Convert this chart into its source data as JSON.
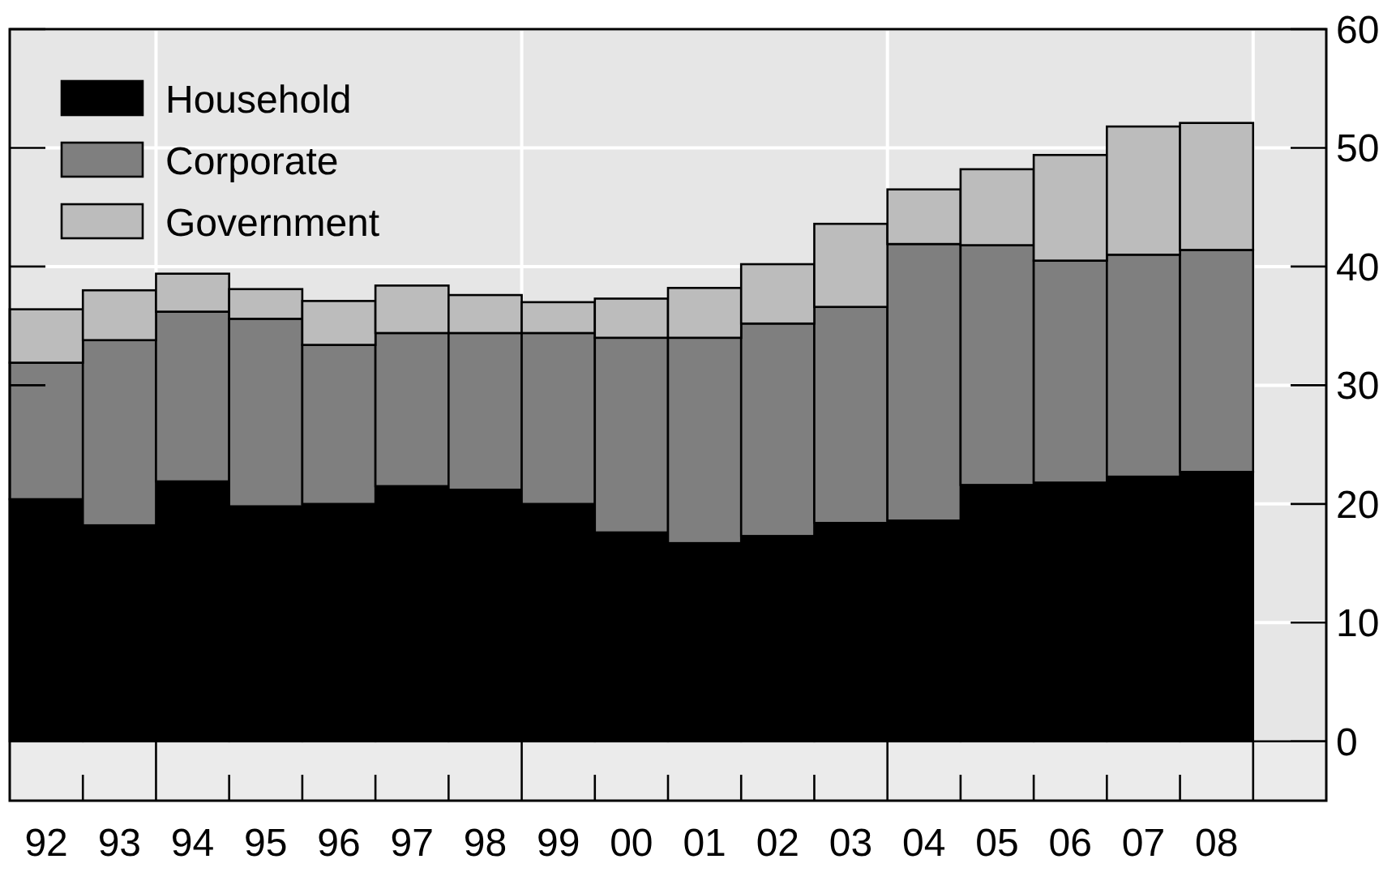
{
  "chart_data": {
    "type": "bar",
    "stacked": true,
    "categories": [
      "92",
      "93",
      "94",
      "95",
      "96",
      "97",
      "98",
      "99",
      "00",
      "01",
      "02",
      "03",
      "04",
      "05",
      "06",
      "07",
      "08",
      null
    ],
    "series": [
      {
        "name": "Household",
        "color": "#000000",
        "values": [
          20.4,
          18.2,
          21.9,
          19.8,
          20.0,
          21.5,
          21.2,
          20.0,
          17.6,
          16.7,
          17.3,
          18.4,
          18.6,
          21.6,
          21.8,
          22.3,
          22.7,
          null
        ]
      },
      {
        "name": "Corporate",
        "color": "#7f7f7f",
        "values": [
          11.5,
          15.6,
          14.3,
          15.8,
          13.4,
          12.9,
          13.2,
          14.4,
          16.4,
          17.3,
          17.9,
          18.2,
          23.3,
          20.2,
          18.7,
          18.7,
          18.7,
          null
        ]
      },
      {
        "name": "Government",
        "color": "#bcbcbc",
        "values": [
          4.5,
          4.2,
          3.2,
          2.5,
          3.7,
          4.0,
          3.2,
          2.6,
          3.3,
          4.2,
          5.0,
          7.0,
          4.6,
          6.4,
          8.9,
          10.8,
          10.7,
          null
        ]
      }
    ],
    "ylim": [
      -5,
      60
    ],
    "yticks": [
      0,
      10,
      20,
      30,
      40,
      50,
      60
    ],
    "grid": true,
    "legend": "top left"
  }
}
